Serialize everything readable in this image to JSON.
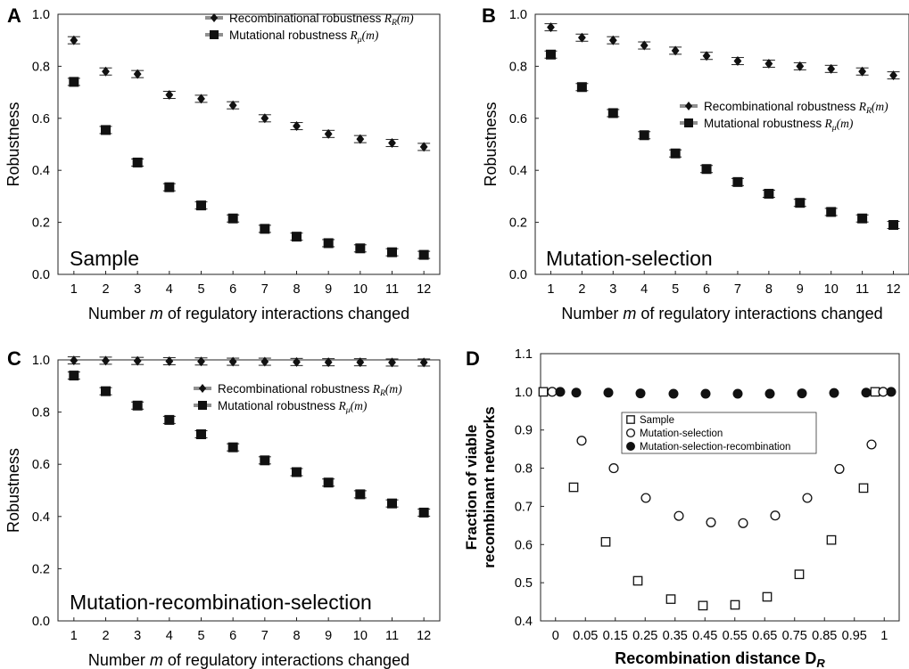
{
  "chart_data": [
    {
      "panel_label": "A",
      "type": "scatter",
      "inset_text": "Sample",
      "xlabel_pre": "Number ",
      "xlabel_var": "m",
      "xlabel_post": " of regulatory interactions changed",
      "ylabel": "Robustness",
      "xticks": [
        "1",
        "2",
        "3",
        "4",
        "5",
        "6",
        "7",
        "8",
        "9",
        "10",
        "11",
        "12"
      ],
      "yticks": [
        "0.0",
        "0.2",
        "0.4",
        "0.6",
        "0.8",
        "1.0"
      ],
      "ylim": [
        0,
        1.0
      ],
      "legend_position": "top-right",
      "series": [
        {
          "name": "Recombinational robustness",
          "name_sub": "R_R(m)",
          "marker": "diamond",
          "values": [
            0.9,
            0.78,
            0.77,
            0.69,
            0.675,
            0.65,
            0.6,
            0.57,
            0.54,
            0.52,
            0.505,
            0.49
          ]
        },
        {
          "name": "Mutational robustness",
          "name_sub": "R_μ(m)",
          "marker": "square",
          "values": [
            0.74,
            0.555,
            0.43,
            0.335,
            0.265,
            0.215,
            0.175,
            0.145,
            0.12,
            0.1,
            0.085,
            0.075
          ]
        }
      ]
    },
    {
      "panel_label": "B",
      "type": "scatter",
      "inset_text": "Mutation-selection",
      "xlabel_pre": "Number ",
      "xlabel_var": "m",
      "xlabel_post": " of regulatory interactions changed",
      "ylabel": "Robustness",
      "xticks": [
        "1",
        "2",
        "3",
        "4",
        "5",
        "6",
        "7",
        "8",
        "9",
        "10",
        "11",
        "12"
      ],
      "yticks": [
        "0.0",
        "0.2",
        "0.4",
        "0.6",
        "0.8",
        "1.0"
      ],
      "ylim": [
        0,
        1.0
      ],
      "legend_position": "middle-right",
      "series": [
        {
          "name": "Recombinational robustness",
          "name_sub": "R_R(m)",
          "marker": "diamond",
          "values": [
            0.95,
            0.91,
            0.9,
            0.88,
            0.86,
            0.84,
            0.82,
            0.81,
            0.8,
            0.79,
            0.78,
            0.765
          ]
        },
        {
          "name": "Mutational robustness",
          "name_sub": "R_μ(m)",
          "marker": "square",
          "values": [
            0.845,
            0.72,
            0.62,
            0.535,
            0.465,
            0.405,
            0.355,
            0.31,
            0.275,
            0.24,
            0.215,
            0.19
          ]
        }
      ]
    },
    {
      "panel_label": "C",
      "type": "scatter",
      "inset_text": "Mutation-recombination-selection",
      "xlabel_pre": "Number ",
      "xlabel_var": "m",
      "xlabel_post": " of regulatory interactions changed",
      "ylabel": "Robustness",
      "xticks": [
        "1",
        "2",
        "3",
        "4",
        "5",
        "6",
        "7",
        "8",
        "9",
        "10",
        "11",
        "12"
      ],
      "yticks": [
        "0.0",
        "0.2",
        "0.4",
        "0.6",
        "0.8",
        "1.0"
      ],
      "ylim": [
        0,
        1.0
      ],
      "legend_position": "top-right",
      "series": [
        {
          "name": "Recombinational robustness",
          "name_sub": "R_R(m)",
          "marker": "diamond",
          "values": [
            0.998,
            0.997,
            0.996,
            0.995,
            0.994,
            0.993,
            0.993,
            0.992,
            0.991,
            0.991,
            0.99,
            0.99
          ]
        },
        {
          "name": "Mutational robustness",
          "name_sub": "R_μ(m)",
          "marker": "square",
          "values": [
            0.94,
            0.88,
            0.825,
            0.77,
            0.715,
            0.665,
            0.615,
            0.57,
            0.53,
            0.485,
            0.45,
            0.415
          ]
        }
      ]
    },
    {
      "panel_label": "D",
      "type": "scatter",
      "xlabel": "Recombination distance D",
      "xlabel_sub": "R",
      "ylabel_line1": "Fraction of viable",
      "ylabel_line2": "recombinant networks",
      "xticks": [
        "0",
        "0.05",
        "0.15",
        "0.25",
        "0.35",
        "0.45",
        "0.55",
        "0.65",
        "0.75",
        "0.85",
        "0.95",
        "1"
      ],
      "yticks": [
        "0.4",
        "0.5",
        "0.6",
        "0.7",
        "0.8",
        "0.9",
        "1.0",
        "1.1"
      ],
      "ylim": [
        0.4,
        1.1
      ],
      "legend_position": "center",
      "series": [
        {
          "name": "Sample",
          "marker": "open-square",
          "x": [
            0,
            0.05,
            0.15,
            0.25,
            0.35,
            0.45,
            0.55,
            0.65,
            0.75,
            0.85,
            0.95,
            1
          ],
          "values": [
            1.0,
            0.75,
            0.607,
            0.505,
            0.457,
            0.44,
            0.442,
            0.463,
            0.522,
            0.612,
            0.748,
            1.0
          ]
        },
        {
          "name": "Mutation-selection",
          "marker": "open-circle",
          "x": [
            0,
            0.05,
            0.15,
            0.25,
            0.35,
            0.45,
            0.55,
            0.65,
            0.75,
            0.85,
            0.95,
            1
          ],
          "values": [
            1.0,
            0.872,
            0.8,
            0.722,
            0.675,
            0.658,
            0.656,
            0.676,
            0.722,
            0.798,
            0.862,
            1.0
          ]
        },
        {
          "name": "Mutation-selection-recombination",
          "marker": "filled-circle",
          "x": [
            0,
            0.05,
            0.15,
            0.25,
            0.35,
            0.45,
            0.55,
            0.65,
            0.75,
            0.85,
            0.95,
            1
          ],
          "values": [
            1.0,
            0.998,
            0.998,
            0.996,
            0.995,
            0.995,
            0.995,
            0.995,
            0.996,
            0.997,
            0.998,
            1.0
          ]
        }
      ]
    }
  ]
}
